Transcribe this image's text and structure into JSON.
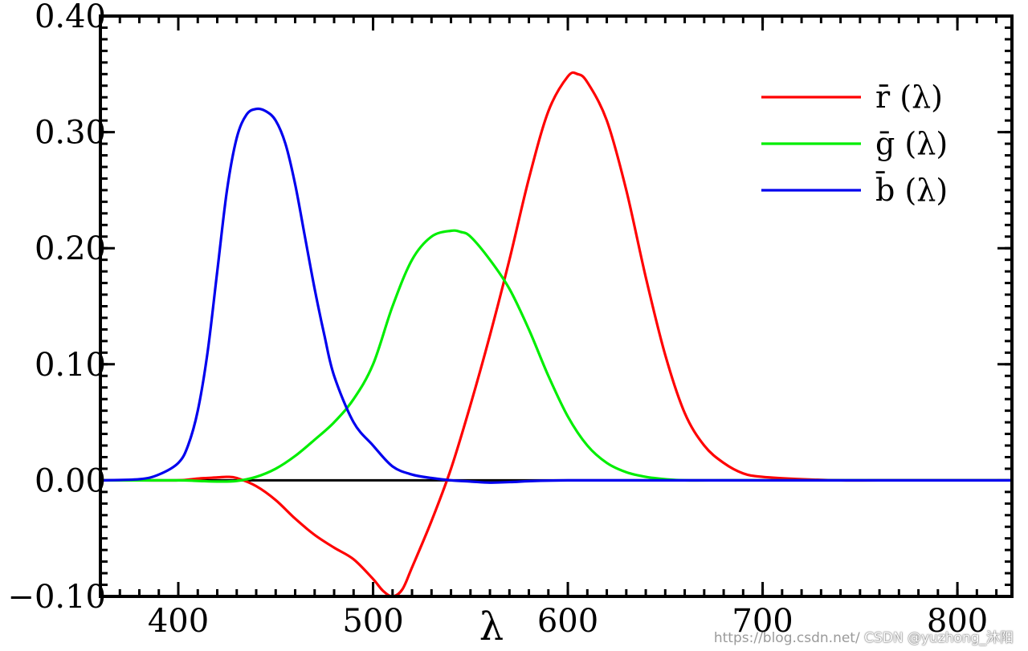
{
  "chart_data": {
    "type": "line",
    "title": "",
    "xlabel": "λ",
    "ylabel": "",
    "xlim": [
      360,
      828
    ],
    "ylim": [
      -0.1,
      0.4
    ],
    "xticks": [
      400,
      500,
      600,
      700,
      800
    ],
    "xtick_labels": [
      "400",
      "500",
      "600",
      "700",
      "800"
    ],
    "yticks": [
      -0.1,
      0.0,
      0.1,
      0.2,
      0.3,
      0.4
    ],
    "ytick_labels": [
      "−0.10",
      "0.00",
      "0.10",
      "0.20",
      "0.30",
      "0.40"
    ],
    "legend_position": "top-right",
    "grid": false,
    "zero_line": true,
    "series": [
      {
        "name": "r̄ (λ)",
        "color": "#ff0000",
        "x": [
          360,
          380,
          400,
          410,
          420,
          425,
          430,
          440,
          450,
          460,
          470,
          480,
          490,
          500,
          505,
          510,
          515,
          520,
          530,
          540,
          550,
          560,
          570,
          580,
          590,
          600,
          605,
          610,
          620,
          630,
          640,
          650,
          660,
          670,
          680,
          690,
          700,
          720,
          740,
          760,
          800,
          828
        ],
        "y": [
          0.0,
          0.0,
          0.0,
          0.0015,
          0.0025,
          0.003,
          0.002,
          -0.005,
          -0.017,
          -0.033,
          -0.047,
          -0.058,
          -0.068,
          -0.085,
          -0.095,
          -0.1,
          -0.094,
          -0.075,
          -0.035,
          0.01,
          0.065,
          0.125,
          0.19,
          0.26,
          0.318,
          0.348,
          0.35,
          0.343,
          0.31,
          0.25,
          0.175,
          0.108,
          0.058,
          0.03,
          0.015,
          0.006,
          0.003,
          0.001,
          0.0,
          0.0,
          0.0,
          0.0
        ]
      },
      {
        "name": "ḡ (λ)",
        "color": "#00ee00",
        "x": [
          360,
          400,
          410,
          420,
          430,
          440,
          450,
          460,
          470,
          480,
          490,
          500,
          510,
          520,
          530,
          540,
          545,
          550,
          560,
          570,
          580,
          590,
          600,
          610,
          620,
          630,
          640,
          650,
          660,
          680,
          700,
          828
        ],
        "y": [
          0.0,
          0.0,
          -0.0005,
          -0.001,
          -0.0005,
          0.003,
          0.01,
          0.021,
          0.035,
          0.05,
          0.07,
          0.1,
          0.15,
          0.19,
          0.21,
          0.215,
          0.214,
          0.21,
          0.19,
          0.165,
          0.13,
          0.09,
          0.055,
          0.03,
          0.015,
          0.007,
          0.003,
          0.001,
          0.0,
          0.0,
          0.0,
          0.0
        ]
      },
      {
        "name": "b̄ (λ)",
        "color": "#0000ee",
        "x": [
          360,
          380,
          390,
          400,
          405,
          410,
          415,
          420,
          425,
          430,
          435,
          440,
          445,
          450,
          455,
          460,
          465,
          470,
          475,
          480,
          490,
          500,
          510,
          520,
          530,
          540,
          550,
          560,
          570,
          600,
          700,
          828
        ],
        "y": [
          0.0,
          0.001,
          0.005,
          0.015,
          0.03,
          0.06,
          0.11,
          0.18,
          0.25,
          0.295,
          0.315,
          0.32,
          0.318,
          0.31,
          0.29,
          0.255,
          0.21,
          0.165,
          0.125,
          0.09,
          0.05,
          0.03,
          0.012,
          0.005,
          0.002,
          0.0,
          -0.001,
          -0.002,
          -0.0015,
          0.0,
          0.0,
          0.0
        ]
      }
    ]
  },
  "watermark": {
    "url": "https://blog.csdn.net/",
    "csdn": "CSDN @yuzhong_沐阳"
  }
}
